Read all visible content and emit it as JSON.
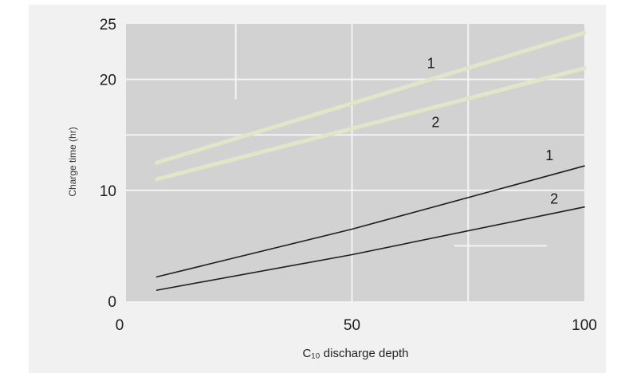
{
  "chart_data": {
    "type": "line",
    "xlabel": "C₁₀ discharge depth",
    "ylabel": "Charge time (hr)",
    "xlim": [
      0,
      100
    ],
    "ylim": [
      0,
      25
    ],
    "x_ticks": [
      "0",
      "50",
      "100"
    ],
    "y_ticks": [
      "0",
      "10",
      "20",
      "25"
    ],
    "grid": true,
    "series": [
      {
        "name": "1",
        "style": "faint",
        "x": [
          8,
          100
        ],
        "y": [
          12.5,
          24.2
        ]
      },
      {
        "name": "2",
        "style": "faint",
        "x": [
          8,
          100
        ],
        "y": [
          11.0,
          21.0
        ]
      },
      {
        "name": "1",
        "style": "dark",
        "x": [
          8,
          50,
          100
        ],
        "y": [
          2.2,
          6.5,
          12.2
        ]
      },
      {
        "name": "2",
        "style": "dark",
        "x": [
          8,
          50,
          100
        ],
        "y": [
          1.0,
          4.2,
          8.5
        ]
      }
    ]
  },
  "colors": {
    "panel": "#f1f1f1",
    "plot_background": "#d2d2d2",
    "gridline": "#f4f4f4",
    "dark_curve": "#1e1e1e",
    "faint_curve": "#e2e5c7"
  }
}
